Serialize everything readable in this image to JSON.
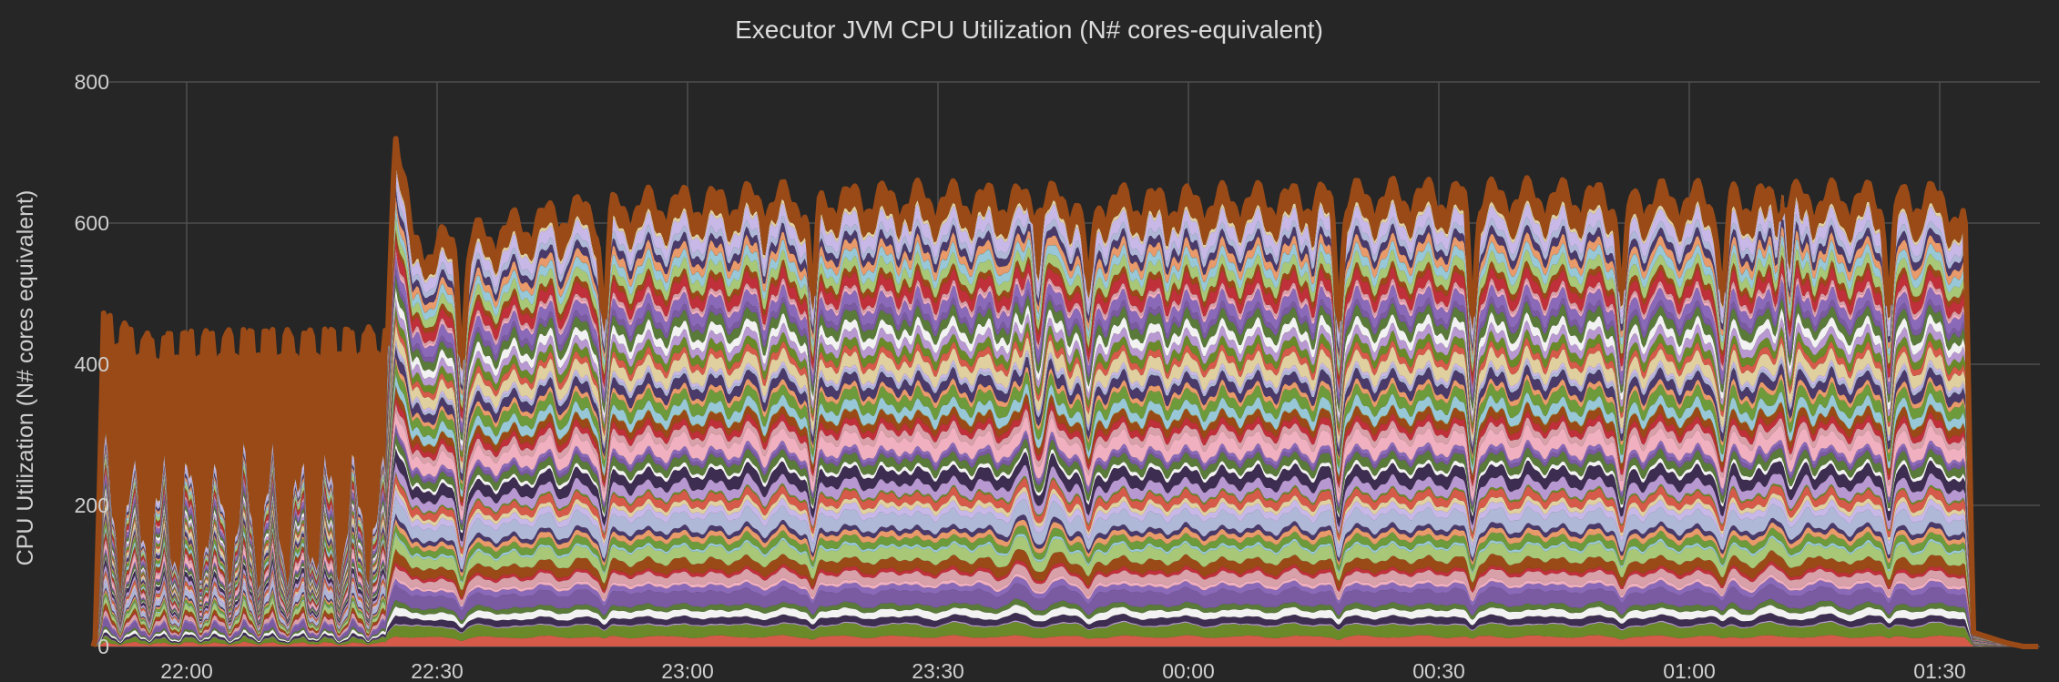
{
  "chart_data": {
    "type": "area",
    "title": "Executor JVM CPU Utilization (N# cores-equivalent)",
    "xlabel": "",
    "ylabel": "CPU Utilization (N# cores equivalent)",
    "ylim": [
      0,
      800
    ],
    "yticks": [
      0,
      200,
      400,
      600,
      800
    ],
    "xlim": [
      "21:48",
      "01:42"
    ],
    "xticks": [
      "22:00",
      "22:30",
      "23:00",
      "23:30",
      "00:00",
      "00:30",
      "01:00",
      "01:30"
    ],
    "grid": true,
    "legend": "none",
    "stacked": true,
    "series_count": 60,
    "total_profile": [
      {
        "x": "21:49",
        "y": 0
      },
      {
        "x": "21:50",
        "y": 450
      },
      {
        "x": "21:55",
        "y": 420
      },
      {
        "x": "22:05",
        "y": 425
      },
      {
        "x": "22:15",
        "y": 425
      },
      {
        "x": "22:24",
        "y": 430
      },
      {
        "x": "22:25",
        "y": 745
      },
      {
        "x": "22:27",
        "y": 560
      },
      {
        "x": "22:35",
        "y": 575
      },
      {
        "x": "22:45",
        "y": 610
      },
      {
        "x": "23:00",
        "y": 625
      },
      {
        "x": "23:15",
        "y": 630
      },
      {
        "x": "23:30",
        "y": 630
      },
      {
        "x": "00:00",
        "y": 625
      },
      {
        "x": "00:30",
        "y": 635
      },
      {
        "x": "01:00",
        "y": 630
      },
      {
        "x": "01:30",
        "y": 630
      },
      {
        "x": "01:33",
        "y": 600
      },
      {
        "x": "01:34",
        "y": 20
      },
      {
        "x": "01:38",
        "y": 5
      },
      {
        "x": "01:40",
        "y": 0
      }
    ],
    "dips": [
      "22:33",
      "22:50",
      "23:15",
      "23:48",
      "00:18",
      "00:34",
      "00:52",
      "01:04",
      "01:24"
    ],
    "colors": {
      "outline": "#9a4a17",
      "background": "#262626",
      "grid": "#4e4e4e",
      "bands": [
        "#9a4a17",
        "#6d9a3a",
        "#b0b8d8",
        "#d65a4a",
        "#3d2d50",
        "#7a5aa0",
        "#d8a0a8",
        "#a8c878",
        "#e89a6a",
        "#c8b8e8",
        "#6a8a2a",
        "#f2f2f2",
        "#8a6ab8",
        "#c0303a",
        "#98c8d8",
        "#4a3a6a",
        "#e0d0a0",
        "#b898d0",
        "#5a7a3a",
        "#f0b0c0"
      ]
    }
  }
}
